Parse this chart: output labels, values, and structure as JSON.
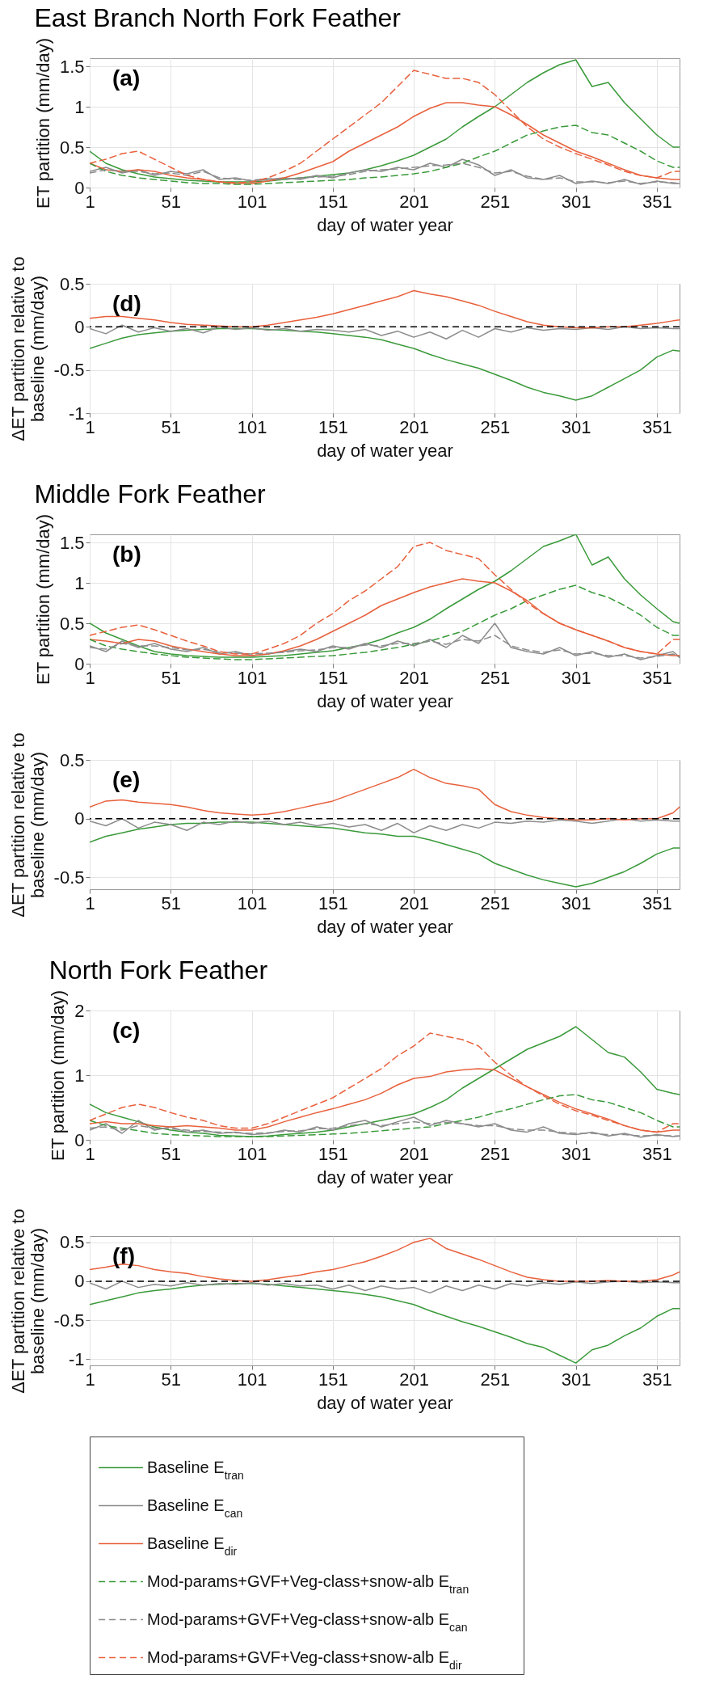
{
  "chart_data": [
    {
      "type": "line",
      "title": "East Branch North Fork Feather",
      "xlabel": "day of water year",
      "ylabel": "ET partition (mm/day)",
      "annotations": [
        "(a)"
      ],
      "grid": true,
      "xlim": [
        1,
        365
      ],
      "xticks": [
        1,
        51,
        101,
        151,
        201,
        251,
        301,
        351
      ],
      "ylim": [
        0,
        1.6
      ],
      "yticks": [
        0,
        0.5,
        1,
        1.5
      ],
      "x": [
        1,
        11,
        21,
        31,
        41,
        51,
        61,
        71,
        81,
        91,
        101,
        111,
        121,
        131,
        141,
        151,
        161,
        171,
        181,
        191,
        201,
        211,
        221,
        231,
        241,
        251,
        261,
        271,
        281,
        291,
        301,
        311,
        321,
        331,
        341,
        351,
        361,
        365
      ],
      "series": [
        {
          "color": "#3a9a3a",
          "values": [
            0.45,
            0.3,
            0.22,
            0.17,
            0.13,
            0.11,
            0.09,
            0.08,
            0.07,
            0.07,
            0.07,
            0.08,
            0.1,
            0.12,
            0.14,
            0.16,
            0.18,
            0.22,
            0.27,
            0.33,
            0.4,
            0.5,
            0.6,
            0.75,
            0.88,
            1.0,
            1.15,
            1.3,
            1.42,
            1.52,
            1.58,
            1.25,
            1.3,
            1.05,
            0.85,
            0.65,
            0.5,
            0.5
          ]
        },
        {
          "color": "#8c8c8c",
          "values": [
            0.2,
            0.25,
            0.18,
            0.22,
            0.15,
            0.2,
            0.17,
            0.22,
            0.1,
            0.12,
            0.08,
            0.1,
            0.12,
            0.1,
            0.15,
            0.12,
            0.18,
            0.22,
            0.2,
            0.25,
            0.22,
            0.3,
            0.25,
            0.35,
            0.28,
            0.15,
            0.22,
            0.12,
            0.1,
            0.15,
            0.05,
            0.08,
            0.05,
            0.1,
            0.04,
            0.08,
            0.05,
            0.05
          ]
        },
        {
          "color": "#e8603c",
          "values": [
            0.3,
            0.22,
            0.2,
            0.22,
            0.2,
            0.15,
            0.12,
            0.1,
            0.07,
            0.05,
            0.05,
            0.08,
            0.12,
            0.18,
            0.25,
            0.32,
            0.45,
            0.55,
            0.65,
            0.75,
            0.88,
            0.98,
            1.05,
            1.05,
            1.02,
            1.0,
            0.9,
            0.78,
            0.65,
            0.55,
            0.45,
            0.38,
            0.3,
            0.22,
            0.15,
            0.12,
            0.1,
            0.1
          ]
        },
        {
          "color": "#3a9a3a",
          "line_style": "dashed",
          "values": [
            0.3,
            0.2,
            0.15,
            0.12,
            0.1,
            0.08,
            0.06,
            0.05,
            0.05,
            0.04,
            0.04,
            0.05,
            0.06,
            0.07,
            0.08,
            0.09,
            0.1,
            0.12,
            0.13,
            0.15,
            0.17,
            0.2,
            0.25,
            0.3,
            0.38,
            0.45,
            0.55,
            0.65,
            0.7,
            0.75,
            0.77,
            0.68,
            0.65,
            0.55,
            0.45,
            0.33,
            0.25,
            0.25
          ]
        },
        {
          "color": "#8c8c8c",
          "line_style": "dashed",
          "values": [
            0.18,
            0.22,
            0.2,
            0.2,
            0.17,
            0.18,
            0.15,
            0.2,
            0.12,
            0.1,
            0.09,
            0.11,
            0.1,
            0.12,
            0.13,
            0.14,
            0.16,
            0.2,
            0.22,
            0.23,
            0.25,
            0.27,
            0.28,
            0.3,
            0.25,
            0.18,
            0.2,
            0.14,
            0.1,
            0.12,
            0.07,
            0.07,
            0.06,
            0.08,
            0.05,
            0.07,
            0.06,
            0.05
          ]
        },
        {
          "color": "#e8603c",
          "line_style": "dashed",
          "values": [
            0.3,
            0.35,
            0.42,
            0.45,
            0.35,
            0.25,
            0.15,
            0.1,
            0.07,
            0.06,
            0.07,
            0.12,
            0.2,
            0.3,
            0.45,
            0.6,
            0.75,
            0.9,
            1.05,
            1.25,
            1.45,
            1.4,
            1.35,
            1.35,
            1.3,
            1.15,
            0.95,
            0.75,
            0.6,
            0.5,
            0.42,
            0.35,
            0.28,
            0.2,
            0.15,
            0.12,
            0.2,
            0.2
          ]
        }
      ]
    },
    {
      "type": "line",
      "title": "Middle Fork Feather",
      "xlabel": "day of water year",
      "ylabel": "ET partition (mm/day)",
      "annotations": [
        "(b)"
      ],
      "grid": true,
      "legend": "bottom",
      "xlim": [
        1,
        365
      ],
      "xticks": [
        1,
        51,
        101,
        151,
        201,
        251,
        301,
        351
      ],
      "ylim": [
        0,
        1.6
      ],
      "yticks": [
        0,
        0.5,
        1,
        1.5
      ],
      "x": [
        1,
        11,
        21,
        31,
        41,
        51,
        61,
        71,
        81,
        91,
        101,
        111,
        121,
        131,
        141,
        151,
        161,
        171,
        181,
        191,
        201,
        211,
        221,
        231,
        241,
        251,
        261,
        271,
        281,
        291,
        301,
        311,
        321,
        331,
        341,
        351,
        361,
        365
      ],
      "series": [
        {
          "name": "Baseline E$_{tran}$",
          "color": "#3a9a3a",
          "values": [
            0.5,
            0.38,
            0.3,
            0.22,
            0.15,
            0.12,
            0.1,
            0.09,
            0.08,
            0.08,
            0.08,
            0.09,
            0.1,
            0.12,
            0.14,
            0.16,
            0.2,
            0.24,
            0.3,
            0.38,
            0.45,
            0.55,
            0.68,
            0.8,
            0.92,
            1.02,
            1.15,
            1.3,
            1.45,
            1.52,
            1.6,
            1.22,
            1.32,
            1.05,
            0.85,
            0.68,
            0.52,
            0.5
          ]
        },
        {
          "name": "Baseline E$_{can}$",
          "color": "#8c8c8c",
          "values": [
            0.22,
            0.15,
            0.28,
            0.2,
            0.25,
            0.18,
            0.15,
            0.2,
            0.12,
            0.15,
            0.1,
            0.12,
            0.15,
            0.18,
            0.15,
            0.22,
            0.18,
            0.25,
            0.2,
            0.28,
            0.22,
            0.3,
            0.2,
            0.35,
            0.25,
            0.5,
            0.2,
            0.15,
            0.12,
            0.2,
            0.1,
            0.15,
            0.08,
            0.12,
            0.05,
            0.1,
            0.15,
            0.08
          ]
        },
        {
          "name": "Baseline E$_{dir}$",
          "color": "#e8603c",
          "values": [
            0.3,
            0.28,
            0.25,
            0.3,
            0.28,
            0.22,
            0.18,
            0.15,
            0.12,
            0.1,
            0.1,
            0.12,
            0.16,
            0.22,
            0.3,
            0.4,
            0.5,
            0.6,
            0.72,
            0.8,
            0.88,
            0.95,
            1.0,
            1.05,
            1.02,
            1.0,
            0.9,
            0.78,
            0.62,
            0.5,
            0.42,
            0.35,
            0.28,
            0.2,
            0.15,
            0.12,
            0.1,
            0.1
          ]
        },
        {
          "name": "Mod-params+GVF+Veg-class+snow-alb E$_{tran}$",
          "color": "#3a9a3a",
          "line_style": "dashed",
          "values": [
            0.3,
            0.22,
            0.18,
            0.15,
            0.12,
            0.1,
            0.08,
            0.07,
            0.06,
            0.05,
            0.05,
            0.06,
            0.07,
            0.08,
            0.09,
            0.1,
            0.12,
            0.14,
            0.17,
            0.2,
            0.24,
            0.28,
            0.34,
            0.4,
            0.5,
            0.6,
            0.68,
            0.78,
            0.85,
            0.92,
            0.97,
            0.88,
            0.82,
            0.72,
            0.6,
            0.45,
            0.35,
            0.35
          ]
        },
        {
          "name": "Mod-params+GVF+Veg-class+snow-alb E$_{can}$",
          "color": "#8c8c8c",
          "line_style": "dashed",
          "values": [
            0.2,
            0.18,
            0.25,
            0.22,
            0.22,
            0.2,
            0.17,
            0.18,
            0.14,
            0.13,
            0.12,
            0.13,
            0.14,
            0.16,
            0.17,
            0.2,
            0.2,
            0.23,
            0.22,
            0.25,
            0.25,
            0.28,
            0.24,
            0.3,
            0.28,
            0.35,
            0.22,
            0.17,
            0.14,
            0.17,
            0.12,
            0.13,
            0.1,
            0.1,
            0.07,
            0.09,
            0.12,
            0.08
          ]
        },
        {
          "name": "Mod-params+GVF+Veg-class+snow-alb E$_{dir}$",
          "color": "#e8603c",
          "line_style": "dashed",
          "values": [
            0.35,
            0.4,
            0.45,
            0.48,
            0.42,
            0.35,
            0.28,
            0.22,
            0.15,
            0.12,
            0.12,
            0.18,
            0.25,
            0.35,
            0.5,
            0.62,
            0.78,
            0.9,
            1.05,
            1.2,
            1.45,
            1.5,
            1.4,
            1.35,
            1.3,
            1.1,
            0.92,
            0.75,
            0.62,
            0.5,
            0.42,
            0.35,
            0.28,
            0.2,
            0.15,
            0.12,
            0.3,
            0.3
          ]
        }
      ]
    },
    {
      "type": "line",
      "title": "North Fork Feather",
      "xlabel": "day of water year",
      "ylabel": "ET partition (mm/day)",
      "annotations": [
        "(c)"
      ],
      "grid": true,
      "xlim": [
        1,
        365
      ],
      "xticks": [
        1,
        51,
        101,
        151,
        201,
        251,
        301,
        351
      ],
      "ylim": [
        0,
        2
      ],
      "yticks": [
        0,
        1,
        2
      ],
      "x": [
        1,
        11,
        21,
        31,
        41,
        51,
        61,
        71,
        81,
        91,
        101,
        111,
        121,
        131,
        141,
        151,
        161,
        171,
        181,
        191,
        201,
        211,
        221,
        231,
        241,
        251,
        261,
        271,
        281,
        291,
        301,
        311,
        321,
        331,
        341,
        351,
        361,
        365
      ],
      "series": [
        {
          "color": "#3a9a3a",
          "values": [
            0.55,
            0.42,
            0.35,
            0.28,
            0.2,
            0.15,
            0.12,
            0.1,
            0.07,
            0.06,
            0.05,
            0.06,
            0.08,
            0.1,
            0.12,
            0.15,
            0.2,
            0.25,
            0.3,
            0.35,
            0.4,
            0.5,
            0.62,
            0.8,
            0.95,
            1.1,
            1.25,
            1.4,
            1.5,
            1.6,
            1.75,
            1.55,
            1.35,
            1.28,
            1.05,
            0.78,
            0.72,
            0.7
          ]
        },
        {
          "color": "#8c8c8c",
          "values": [
            0.15,
            0.25,
            0.1,
            0.3,
            0.15,
            0.2,
            0.12,
            0.15,
            0.1,
            0.12,
            0.08,
            0.1,
            0.15,
            0.12,
            0.2,
            0.15,
            0.25,
            0.3,
            0.2,
            0.28,
            0.35,
            0.22,
            0.3,
            0.25,
            0.2,
            0.25,
            0.15,
            0.12,
            0.2,
            0.1,
            0.08,
            0.12,
            0.06,
            0.1,
            0.04,
            0.08,
            0.05,
            0.06
          ]
        },
        {
          "color": "#e8603c",
          "values": [
            0.25,
            0.28,
            0.25,
            0.25,
            0.22,
            0.2,
            0.22,
            0.2,
            0.18,
            0.15,
            0.15,
            0.2,
            0.28,
            0.35,
            0.42,
            0.48,
            0.55,
            0.62,
            0.72,
            0.85,
            0.95,
            0.98,
            1.05,
            1.08,
            1.1,
            1.08,
            0.95,
            0.82,
            0.7,
            0.58,
            0.48,
            0.4,
            0.32,
            0.22,
            0.15,
            0.12,
            0.15,
            0.15
          ]
        },
        {
          "color": "#3a9a3a",
          "line_style": "dashed",
          "values": [
            0.3,
            0.22,
            0.18,
            0.14,
            0.1,
            0.08,
            0.07,
            0.06,
            0.05,
            0.05,
            0.05,
            0.05,
            0.06,
            0.07,
            0.08,
            0.09,
            0.1,
            0.12,
            0.14,
            0.16,
            0.18,
            0.2,
            0.25,
            0.3,
            0.35,
            0.42,
            0.48,
            0.55,
            0.62,
            0.68,
            0.7,
            0.62,
            0.58,
            0.5,
            0.42,
            0.3,
            0.2,
            0.2
          ]
        },
        {
          "color": "#8c8c8c",
          "line_style": "dashed",
          "values": [
            0.18,
            0.2,
            0.15,
            0.22,
            0.18,
            0.17,
            0.15,
            0.13,
            0.12,
            0.11,
            0.1,
            0.11,
            0.13,
            0.14,
            0.17,
            0.18,
            0.22,
            0.25,
            0.22,
            0.25,
            0.28,
            0.25,
            0.27,
            0.25,
            0.22,
            0.22,
            0.17,
            0.15,
            0.15,
            0.12,
            0.1,
            0.1,
            0.08,
            0.08,
            0.06,
            0.07,
            0.06,
            0.06
          ]
        },
        {
          "color": "#e8603c",
          "line_style": "dashed",
          "values": [
            0.3,
            0.4,
            0.5,
            0.55,
            0.5,
            0.42,
            0.35,
            0.3,
            0.22,
            0.18,
            0.18,
            0.25,
            0.35,
            0.45,
            0.55,
            0.65,
            0.8,
            0.95,
            1.1,
            1.3,
            1.45,
            1.65,
            1.6,
            1.55,
            1.45,
            1.2,
            1.0,
            0.82,
            0.68,
            0.55,
            0.45,
            0.38,
            0.3,
            0.22,
            0.15,
            0.12,
            0.25,
            0.25
          ]
        }
      ]
    },
    {
      "type": "line",
      "xlabel": "day of water year",
      "ylabel": "ΔET partition relative to baseline (mm/day)",
      "annotations": [
        "(d)"
      ],
      "grid": true,
      "xlim": [
        1,
        365
      ],
      "xticks": [
        1,
        51,
        101,
        151,
        201,
        251,
        301,
        351
      ],
      "ylim": [
        -1,
        0.5
      ],
      "yticks": [
        -1,
        -0.5,
        0,
        0.5
      ],
      "ref_lines": [
        {
          "axis": "y",
          "value": 0,
          "color": "#000000",
          "line_style": "dashed"
        }
      ],
      "x": [
        1,
        11,
        21,
        31,
        41,
        51,
        61,
        71,
        81,
        91,
        101,
        111,
        121,
        131,
        141,
        151,
        161,
        171,
        181,
        191,
        201,
        211,
        221,
        231,
        241,
        251,
        261,
        271,
        281,
        291,
        301,
        311,
        321,
        331,
        341,
        351,
        361,
        365
      ],
      "series": [
        {
          "color": "#3a9a3a",
          "values": [
            -0.25,
            -0.19,
            -0.13,
            -0.09,
            -0.07,
            -0.05,
            -0.04,
            -0.03,
            -0.02,
            -0.02,
            -0.02,
            -0.03,
            -0.04,
            -0.05,
            -0.06,
            -0.08,
            -0.1,
            -0.12,
            -0.15,
            -0.2,
            -0.25,
            -0.32,
            -0.38,
            -0.43,
            -0.48,
            -0.55,
            -0.62,
            -0.7,
            -0.76,
            -0.8,
            -0.85,
            -0.8,
            -0.7,
            -0.6,
            -0.5,
            -0.35,
            -0.27,
            -0.28
          ]
        },
        {
          "color": "#8c8c8c",
          "values": [
            -0.02,
            -0.08,
            0.02,
            -0.06,
            -0.01,
            -0.05,
            -0.02,
            -0.07,
            0.0,
            -0.03,
            -0.01,
            -0.04,
            -0.02,
            -0.05,
            -0.03,
            -0.04,
            -0.06,
            -0.03,
            -0.1,
            -0.05,
            -0.12,
            -0.06,
            -0.14,
            -0.04,
            -0.12,
            -0.02,
            -0.06,
            -0.01,
            -0.04,
            -0.02,
            -0.03,
            -0.01,
            -0.03,
            0.0,
            -0.02,
            -0.01,
            -0.02,
            -0.02
          ]
        },
        {
          "color": "#e8603c",
          "values": [
            0.1,
            0.12,
            0.12,
            0.1,
            0.08,
            0.05,
            0.03,
            0.02,
            0.01,
            0.0,
            0.0,
            0.02,
            0.05,
            0.08,
            0.11,
            0.15,
            0.2,
            0.25,
            0.3,
            0.35,
            0.42,
            0.38,
            0.35,
            0.3,
            0.25,
            0.18,
            0.12,
            0.06,
            0.02,
            0.0,
            -0.01,
            -0.01,
            0.0,
            0.0,
            0.02,
            0.04,
            0.07,
            0.08
          ]
        }
      ]
    },
    {
      "type": "line",
      "xlabel": "day of water year",
      "ylabel": "ΔET partition relative to baseline (mm/day)",
      "annotations": [
        "(e)"
      ],
      "grid": true,
      "xlim": [
        1,
        365
      ],
      "xticks": [
        1,
        51,
        101,
        151,
        201,
        251,
        301,
        351
      ],
      "ylim": [
        -0.6,
        0.5
      ],
      "yticks": [
        -0.5,
        0,
        0.5
      ],
      "ref_lines": [
        {
          "axis": "y",
          "value": 0,
          "color": "#000000",
          "line_style": "dashed"
        }
      ],
      "x": [
        1,
        11,
        21,
        31,
        41,
        51,
        61,
        71,
        81,
        91,
        101,
        111,
        121,
        131,
        141,
        151,
        161,
        171,
        181,
        191,
        201,
        211,
        221,
        231,
        241,
        251,
        261,
        271,
        281,
        291,
        301,
        311,
        321,
        331,
        341,
        351,
        361,
        365
      ],
      "series": [
        {
          "color": "#3a9a3a",
          "values": [
            -0.2,
            -0.15,
            -0.12,
            -0.09,
            -0.07,
            -0.05,
            -0.04,
            -0.04,
            -0.03,
            -0.03,
            -0.03,
            -0.04,
            -0.05,
            -0.06,
            -0.07,
            -0.08,
            -0.1,
            -0.12,
            -0.13,
            -0.15,
            -0.15,
            -0.18,
            -0.22,
            -0.26,
            -0.3,
            -0.38,
            -0.43,
            -0.48,
            -0.52,
            -0.55,
            -0.58,
            -0.55,
            -0.5,
            -0.45,
            -0.38,
            -0.3,
            -0.25,
            -0.25
          ]
        },
        {
          "color": "#8c8c8c",
          "values": [
            -0.02,
            -0.06,
            0.0,
            -0.08,
            -0.03,
            -0.05,
            -0.1,
            -0.03,
            -0.05,
            -0.02,
            -0.04,
            -0.02,
            -0.05,
            -0.03,
            -0.06,
            -0.04,
            -0.07,
            -0.05,
            -0.1,
            -0.04,
            -0.12,
            -0.06,
            -0.1,
            -0.05,
            -0.08,
            -0.03,
            -0.04,
            -0.02,
            -0.03,
            -0.01,
            -0.02,
            -0.04,
            -0.02,
            0.0,
            -0.02,
            -0.01,
            -0.02,
            -0.02
          ]
        },
        {
          "color": "#e8603c",
          "values": [
            0.1,
            0.15,
            0.16,
            0.14,
            0.13,
            0.12,
            0.1,
            0.07,
            0.05,
            0.04,
            0.03,
            0.04,
            0.06,
            0.09,
            0.12,
            0.15,
            0.2,
            0.25,
            0.3,
            0.35,
            0.42,
            0.35,
            0.3,
            0.28,
            0.25,
            0.12,
            0.06,
            0.03,
            0.01,
            0.0,
            -0.01,
            -0.01,
            0.0,
            -0.01,
            0.0,
            0.0,
            0.05,
            0.1
          ]
        }
      ]
    },
    {
      "type": "line",
      "xlabel": "day of water year",
      "ylabel": "ΔET partition relative to baseline (mm/day)",
      "annotations": [
        "(f)"
      ],
      "grid": true,
      "xlim": [
        1,
        365
      ],
      "xticks": [
        1,
        51,
        101,
        151,
        201,
        251,
        301,
        351
      ],
      "ylim": [
        -1.08,
        0.58
      ],
      "yticks": [
        -1,
        -0.5,
        0,
        0.5
      ],
      "ref_lines": [
        {
          "axis": "y",
          "value": 0,
          "color": "#000000",
          "line_style": "dashed"
        }
      ],
      "x": [
        1,
        11,
        21,
        31,
        41,
        51,
        61,
        71,
        81,
        91,
        101,
        111,
        121,
        131,
        141,
        151,
        161,
        171,
        181,
        191,
        201,
        211,
        221,
        231,
        241,
        251,
        261,
        271,
        281,
        291,
        301,
        311,
        321,
        331,
        341,
        351,
        361,
        365
      ],
      "series": [
        {
          "color": "#3a9a3a",
          "values": [
            -0.3,
            -0.25,
            -0.2,
            -0.15,
            -0.12,
            -0.1,
            -0.07,
            -0.05,
            -0.04,
            -0.03,
            -0.03,
            -0.04,
            -0.06,
            -0.08,
            -0.1,
            -0.12,
            -0.14,
            -0.17,
            -0.2,
            -0.25,
            -0.3,
            -0.38,
            -0.45,
            -0.52,
            -0.58,
            -0.65,
            -0.72,
            -0.8,
            -0.85,
            -0.95,
            -1.05,
            -0.88,
            -0.82,
            -0.7,
            -0.6,
            -0.45,
            -0.35,
            -0.35
          ]
        },
        {
          "color": "#8c8c8c",
          "values": [
            -0.02,
            -0.1,
            0.0,
            -0.08,
            -0.04,
            -0.06,
            -0.02,
            -0.05,
            -0.03,
            -0.04,
            -0.02,
            -0.05,
            -0.03,
            -0.06,
            -0.05,
            -0.1,
            -0.05,
            -0.12,
            -0.06,
            -0.1,
            -0.08,
            -0.15,
            -0.06,
            -0.12,
            -0.05,
            -0.1,
            -0.03,
            -0.06,
            -0.02,
            -0.04,
            -0.01,
            -0.03,
            -0.01,
            0.0,
            -0.02,
            -0.01,
            -0.02,
            -0.02
          ]
        },
        {
          "color": "#e8603c",
          "values": [
            0.15,
            0.18,
            0.22,
            0.2,
            0.15,
            0.12,
            0.1,
            0.06,
            0.03,
            0.01,
            0.0,
            0.02,
            0.05,
            0.08,
            0.12,
            0.15,
            0.2,
            0.25,
            0.32,
            0.4,
            0.5,
            0.55,
            0.42,
            0.35,
            0.28,
            0.2,
            0.12,
            0.05,
            0.02,
            0.0,
            0.0,
            0.0,
            0.01,
            0.0,
            0.0,
            0.02,
            0.08,
            0.12
          ]
        }
      ]
    }
  ]
}
